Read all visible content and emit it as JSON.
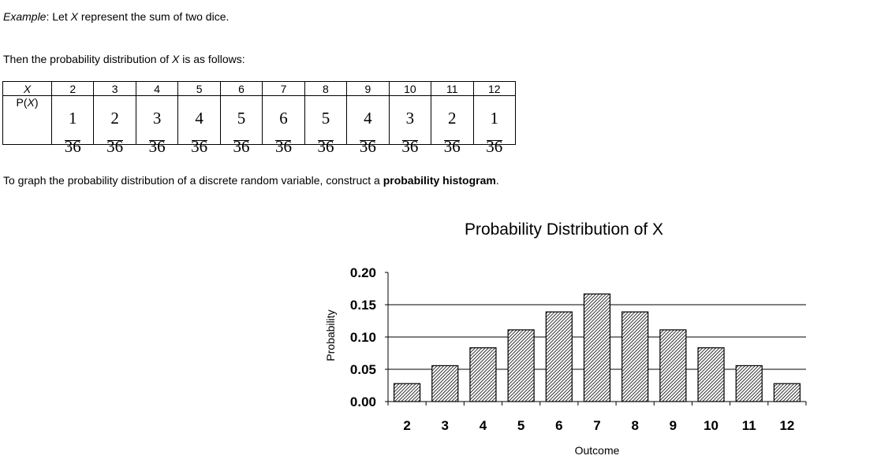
{
  "text": {
    "example_label": "Example",
    "example_rest_a": ": Let ",
    "example_var": "X",
    "example_rest_b": " represent the sum of two dice.",
    "then_a": "Then the probability distribution of ",
    "then_var": "X",
    "then_b": " is as follows:",
    "graph_a": "To graph the probability distribution of a discrete random variable, construct a ",
    "graph_bold": "probability histogram",
    "graph_b": "."
  },
  "table": {
    "x_label": "X",
    "p_label_a": "P(",
    "p_label_var": "X",
    "p_label_b": ")",
    "x_values": [
      "2",
      "3",
      "4",
      "5",
      "6",
      "7",
      "8",
      "9",
      "10",
      "11",
      "12"
    ],
    "numerators": [
      "1",
      "2",
      "3",
      "4",
      "5",
      "6",
      "5",
      "4",
      "3",
      "2",
      "1"
    ],
    "denominator": "36"
  },
  "chart_data": {
    "type": "bar",
    "title": "Probability Distribution of X",
    "xlabel": "Outcome",
    "ylabel": "Probability",
    "categories": [
      "2",
      "3",
      "4",
      "5",
      "6",
      "7",
      "8",
      "9",
      "10",
      "11",
      "12"
    ],
    "values": [
      0.0278,
      0.0556,
      0.0833,
      0.1111,
      0.1389,
      0.1667,
      0.1389,
      0.1111,
      0.0833,
      0.0556,
      0.0278
    ],
    "ylim": [
      0,
      0.2
    ],
    "yticks": [
      "0.00",
      "0.05",
      "0.10",
      "0.15",
      "0.20"
    ],
    "grid": true,
    "legend": "none",
    "bar_fill": "hatched",
    "colors": {
      "bar_stroke": "#000000",
      "grid": "#000000"
    }
  }
}
